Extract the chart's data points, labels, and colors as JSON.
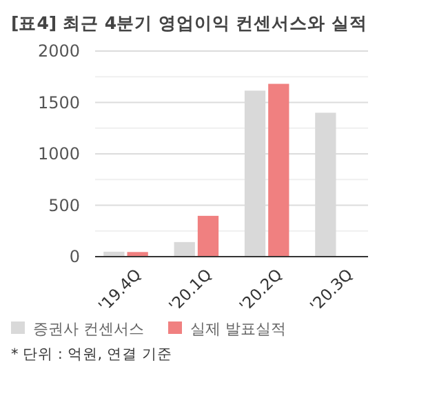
{
  "chart_data": {
    "type": "bar",
    "title": "[표4] 최근 4분기 영업이익 컨센서스와 실적",
    "categories": [
      "'19.4Q",
      "'20.1Q",
      "'20.2Q",
      "'20.3Q"
    ],
    "series": [
      {
        "name": "증권사 컨센서스",
        "color": "#d9d9d9",
        "values": [
          48,
          142,
          1615,
          1400
        ]
      },
      {
        "name": "실제 발표실적",
        "color": "#f08080",
        "values": [
          45,
          397,
          1681,
          5
        ]
      }
    ],
    "ylim": [
      0,
      2000
    ],
    "yticks": [
      0,
      {
        "value": 250,
        "label": null
      },
      500,
      {
        "value": 750,
        "label": null
      },
      1000,
      {
        "value": 1250,
        "label": null
      },
      1500,
      {
        "value": 1750,
        "label": null
      },
      2000
    ],
    "grid": "y",
    "legend": "bottom",
    "annotations": [
      "* 단위 : 억원, 연결 기준"
    ]
  }
}
